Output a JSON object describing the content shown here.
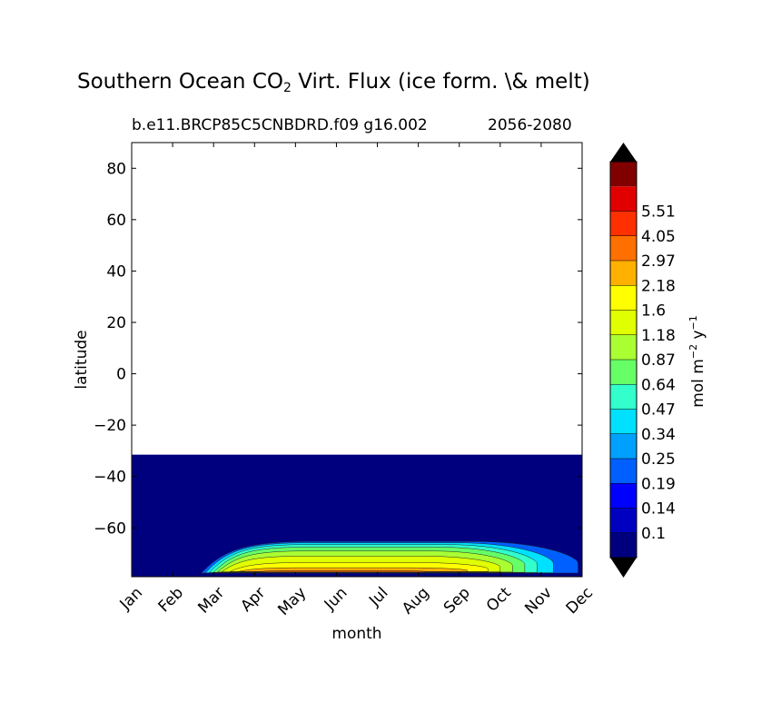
{
  "chart_data": {
    "type": "contourf",
    "title": {
      "prefix": "Southern Ocean CO",
      "subscript": "2",
      "suffix": " Virt. Flux (ice form. \\& melt)"
    },
    "subtitle_left": "b.e11.BRCP85C5CNBDRD.f09 g16.002",
    "subtitle_right": "2056-2080",
    "xlabel": "month",
    "ylabel": "latitude",
    "x_categories": [
      "Jan",
      "Feb",
      "Mar",
      "Apr",
      "May",
      "Jun",
      "Jul",
      "Aug",
      "Sep",
      "Oct",
      "Nov",
      "Dec"
    ],
    "ylim": [
      -79,
      90
    ],
    "y_ticks": [
      80,
      60,
      40,
      20,
      0,
      -20,
      -40,
      -60
    ],
    "y_tick_labels": [
      "80",
      "60",
      "40",
      "20",
      "0",
      "−20",
      "−40",
      "−60"
    ],
    "data_region": {
      "lat_max": -31.5,
      "lat_min": -79
    },
    "colorbar": {
      "unit_base": "mol m",
      "unit_exp1": "−2",
      "unit_mid": "  y",
      "unit_exp2": "−1",
      "levels": [
        "0.1",
        "0.14",
        "0.19",
        "0.25",
        "0.34",
        "0.47",
        "0.64",
        "0.87",
        "1.18",
        "1.6",
        "2.18",
        "2.97",
        "4.05",
        "5.51"
      ],
      "colors": [
        "#00007f",
        "#0000c0",
        "#0000ff",
        "#0060ff",
        "#00a0ff",
        "#00e0ff",
        "#33ffcc",
        "#66ff66",
        "#aaff33",
        "#e0ff00",
        "#ffff00",
        "#ffb000",
        "#ff7000",
        "#ff3000",
        "#e00000",
        "#800000"
      ],
      "extend_low_color": "#000000",
      "extend_high_color": "#000000"
    },
    "contours": [
      {
        "level_index": 3,
        "start_month": 1.7,
        "end_month": 10.9,
        "top_lat": -65.3,
        "bottom_lat": -77.6
      },
      {
        "level_index": 5,
        "start_month": 1.8,
        "end_month": 10.3,
        "top_lat": -65.8,
        "bottom_lat": -77.5
      },
      {
        "level_index": 6,
        "start_month": 1.9,
        "end_month": 9.9,
        "top_lat": -66.5,
        "bottom_lat": -77.4
      },
      {
        "level_index": 7,
        "start_month": 2.0,
        "end_month": 9.6,
        "top_lat": -67.5,
        "bottom_lat": -77.3
      },
      {
        "level_index": 8,
        "start_month": 2.1,
        "end_month": 9.3,
        "top_lat": -69.0,
        "bottom_lat": -77.2
      },
      {
        "level_index": 9,
        "start_month": 2.2,
        "end_month": 9.0,
        "top_lat": -71.0,
        "bottom_lat": -77.1
      },
      {
        "level_index": 10,
        "start_month": 2.4,
        "end_month": 8.7,
        "top_lat": -73.5,
        "bottom_lat": -77.0
      },
      {
        "level_index": 11,
        "start_month": 2.6,
        "end_month": 8.2,
        "top_lat": -75.5,
        "bottom_lat": -77.0
      },
      {
        "level_index": 12,
        "start_month": 3.0,
        "end_month": 7.2,
        "top_lat": -76.6,
        "bottom_lat": -77.2
      }
    ]
  }
}
